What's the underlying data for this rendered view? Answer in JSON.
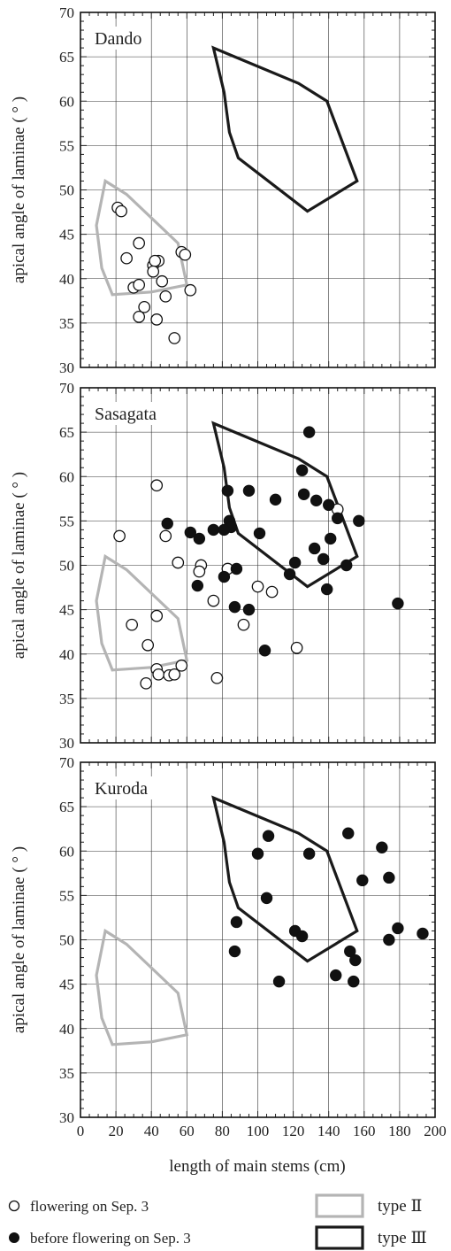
{
  "chart_data": {
    "type": "scatter",
    "xlabel": "length of main stems (cm)",
    "ylabel": "apical angle of laminae ( ° )",
    "xlim": [
      0,
      200
    ],
    "ylim": [
      30,
      70
    ],
    "x_ticks": [
      "0",
      "20",
      "40",
      "60",
      "80",
      "100",
      "120",
      "140",
      "160",
      "180",
      "200"
    ],
    "y_ticks": [
      "30",
      "35",
      "40",
      "45",
      "50",
      "55",
      "60",
      "65",
      "70"
    ],
    "grid": true,
    "legend": {
      "placement": "bottom",
      "flowering_label": "flowering on Sep. 3",
      "before_label": "before flowering on Sep. 3",
      "type2_label": "type Ⅱ",
      "type3_label": "type Ⅲ",
      "type2_color": "#b4b4b4",
      "type3_color": "#1a1a1a"
    },
    "type2_polygon": [
      [
        14,
        51
      ],
      [
        26,
        49.5
      ],
      [
        55,
        44
      ],
      [
        60,
        39.3
      ],
      [
        40,
        38.5
      ],
      [
        18,
        38.2
      ],
      [
        12,
        41.2
      ],
      [
        9,
        46
      ]
    ],
    "type3_polygon": [
      [
        75,
        66
      ],
      [
        123,
        62
      ],
      [
        139,
        60
      ],
      [
        156,
        51
      ],
      [
        128,
        47.6
      ],
      [
        89,
        53.6
      ],
      [
        84,
        56.5
      ],
      [
        81,
        61
      ]
    ],
    "panels": [
      {
        "title": "Dando",
        "flowering": [
          [
            21,
            48
          ],
          [
            23,
            47.6
          ],
          [
            26,
            42.3
          ],
          [
            33,
            44
          ],
          [
            41,
            41.5
          ],
          [
            44,
            42
          ],
          [
            42,
            42
          ],
          [
            57,
            43
          ],
          [
            59,
            42.7
          ],
          [
            41,
            40.8
          ],
          [
            30,
            39
          ],
          [
            33,
            39.3
          ],
          [
            46,
            39.7
          ],
          [
            48,
            38
          ],
          [
            62,
            38.7
          ],
          [
            36,
            36.8
          ],
          [
            33,
            35.7
          ],
          [
            43,
            35.4
          ],
          [
            53,
            33.3
          ]
        ],
        "before": []
      },
      {
        "title": "Sasagata",
        "flowering": [
          [
            22,
            53.3
          ],
          [
            43,
            59
          ],
          [
            48,
            53.3
          ],
          [
            55,
            50.3
          ],
          [
            68,
            50
          ],
          [
            67,
            49.3
          ],
          [
            83,
            49.6
          ],
          [
            100,
            47.6
          ],
          [
            108,
            47
          ],
          [
            75,
            46
          ],
          [
            92,
            43.3
          ],
          [
            122,
            40.7
          ],
          [
            29,
            43.3
          ],
          [
            43,
            44.3
          ],
          [
            38,
            41
          ],
          [
            43,
            38.3
          ],
          [
            57,
            38.7
          ],
          [
            44,
            37.7
          ],
          [
            50,
            37.6
          ],
          [
            53,
            37.7
          ],
          [
            37,
            36.7
          ],
          [
            77,
            37.3
          ],
          [
            145,
            56.3
          ]
        ],
        "before": [
          [
            129,
            65
          ],
          [
            125,
            60.7
          ],
          [
            83,
            58.4
          ],
          [
            95,
            58.4
          ],
          [
            110,
            57.4
          ],
          [
            126,
            58
          ],
          [
            133,
            57.3
          ],
          [
            140,
            56.8
          ],
          [
            145,
            55.3
          ],
          [
            157,
            55
          ],
          [
            84,
            55
          ],
          [
            85,
            54.3
          ],
          [
            81,
            54
          ],
          [
            75,
            54
          ],
          [
            62,
            53.7
          ],
          [
            101,
            53.6
          ],
          [
            49,
            54.7
          ],
          [
            67,
            53
          ],
          [
            141,
            53
          ],
          [
            121,
            50.3
          ],
          [
            132,
            51.9
          ],
          [
            137,
            50.7
          ],
          [
            150,
            50
          ],
          [
            88,
            49.6
          ],
          [
            81,
            48.7
          ],
          [
            118,
            49
          ],
          [
            66,
            47.7
          ],
          [
            139,
            47.3
          ],
          [
            87,
            45.3
          ],
          [
            95,
            45
          ],
          [
            104,
            40.4
          ],
          [
            179,
            45.7
          ]
        ]
      },
      {
        "title": "Kuroda",
        "flowering": [],
        "before": [
          [
            106,
            61.7
          ],
          [
            100,
            59.7
          ],
          [
            129,
            59.7
          ],
          [
            151,
            62
          ],
          [
            170,
            60.4
          ],
          [
            159,
            56.7
          ],
          [
            174,
            57
          ],
          [
            105,
            54.7
          ],
          [
            88,
            52
          ],
          [
            121,
            51
          ],
          [
            125,
            50.4
          ],
          [
            152,
            48.7
          ],
          [
            155,
            47.7
          ],
          [
            174,
            50
          ],
          [
            179,
            51.3
          ],
          [
            193,
            50.7
          ],
          [
            87,
            48.7
          ],
          [
            112,
            45.3
          ],
          [
            144,
            46
          ],
          [
            154,
            45.3
          ]
        ]
      }
    ]
  }
}
